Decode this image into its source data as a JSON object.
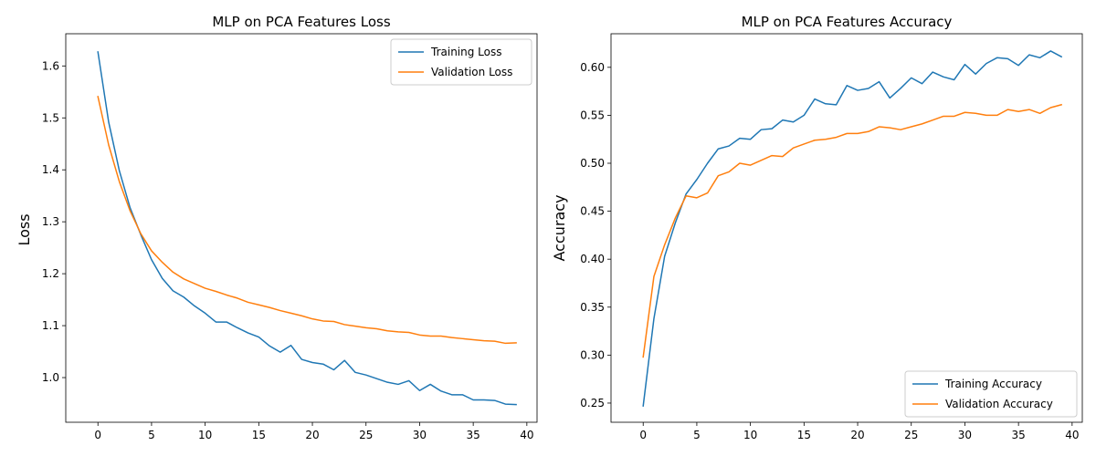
{
  "colors": {
    "training": "#1f77b4",
    "validation": "#ff7f0e",
    "axes": "#000000",
    "legend_border": "#cccccc"
  },
  "chart_data": [
    {
      "type": "line",
      "title": "MLP on PCA Features Loss",
      "xlabel": "",
      "ylabel": "Loss",
      "xlim": [
        -3.0,
        40.95
      ],
      "ylim": [
        0.914,
        1.662
      ],
      "xticks": [
        0,
        5,
        10,
        15,
        20,
        25,
        30,
        35,
        40
      ],
      "yticks": [
        1.0,
        1.1,
        1.2,
        1.3,
        1.4,
        1.5,
        1.6
      ],
      "ytick_labels": [
        "1.0",
        "1.1",
        "1.2",
        "1.3",
        "1.4",
        "1.5",
        "1.6"
      ],
      "grid": false,
      "legend_position": "upper right",
      "series": [
        {
          "name": "Training Loss",
          "color": "#1f77b4",
          "x": [
            0,
            1,
            2,
            3,
            4,
            5,
            6,
            7,
            8,
            9,
            10,
            11,
            12,
            13,
            14,
            15,
            16,
            17,
            18,
            19,
            20,
            21,
            22,
            23,
            24,
            25,
            26,
            27,
            28,
            29,
            30,
            31,
            32,
            33,
            34,
            35,
            36,
            37,
            38,
            39
          ],
          "y": [
            1.627,
            1.492,
            1.398,
            1.327,
            1.275,
            1.227,
            1.191,
            1.167,
            1.155,
            1.138,
            1.124,
            1.107,
            1.107,
            1.096,
            1.086,
            1.078,
            1.061,
            1.049,
            1.062,
            1.035,
            1.029,
            1.026,
            1.015,
            1.033,
            1.01,
            1.005,
            0.998,
            0.991,
            0.987,
            0.994,
            0.975,
            0.987,
            0.974,
            0.967,
            0.967,
            0.957,
            0.957,
            0.956,
            0.949,
            0.948
          ]
        },
        {
          "name": "Validation Loss",
          "color": "#ff7f0e",
          "x": [
            0,
            1,
            2,
            3,
            4,
            5,
            6,
            7,
            8,
            9,
            10,
            11,
            12,
            13,
            14,
            15,
            16,
            17,
            18,
            19,
            20,
            21,
            22,
            23,
            24,
            25,
            26,
            27,
            28,
            29,
            30,
            31,
            32,
            33,
            34,
            35,
            36,
            37,
            38,
            39
          ],
          "y": [
            1.541,
            1.448,
            1.377,
            1.321,
            1.277,
            1.244,
            1.222,
            1.203,
            1.19,
            1.181,
            1.172,
            1.166,
            1.159,
            1.153,
            1.145,
            1.14,
            1.135,
            1.129,
            1.124,
            1.119,
            1.113,
            1.109,
            1.108,
            1.102,
            1.099,
            1.096,
            1.094,
            1.09,
            1.088,
            1.087,
            1.082,
            1.08,
            1.08,
            1.077,
            1.075,
            1.073,
            1.071,
            1.07,
            1.066,
            1.067
          ]
        }
      ]
    },
    {
      "type": "line",
      "title": "MLP on PCA Features Accuracy",
      "xlabel": "",
      "ylabel": "Accuracy",
      "xlim": [
        -3.0,
        40.95
      ],
      "ylim": [
        0.23,
        0.635
      ],
      "xticks": [
        0,
        5,
        10,
        15,
        20,
        25,
        30,
        35,
        40
      ],
      "yticks": [
        0.25,
        0.3,
        0.35,
        0.4,
        0.45,
        0.5,
        0.55,
        0.6
      ],
      "ytick_labels": [
        "0.25",
        "0.30",
        "0.35",
        "0.40",
        "0.45",
        "0.50",
        "0.55",
        "0.60"
      ],
      "grid": false,
      "legend_position": "lower right",
      "series": [
        {
          "name": "Training Accuracy",
          "color": "#1f77b4",
          "x": [
            0,
            1,
            2,
            3,
            4,
            5,
            6,
            7,
            8,
            9,
            10,
            11,
            12,
            13,
            14,
            15,
            16,
            17,
            18,
            19,
            20,
            21,
            22,
            23,
            24,
            25,
            26,
            27,
            28,
            29,
            30,
            31,
            32,
            33,
            34,
            35,
            36,
            37,
            38,
            39
          ],
          "y": [
            0.247,
            0.338,
            0.403,
            0.438,
            0.468,
            0.483,
            0.5,
            0.515,
            0.518,
            0.526,
            0.525,
            0.535,
            0.536,
            0.545,
            0.543,
            0.55,
            0.567,
            0.562,
            0.561,
            0.581,
            0.576,
            0.578,
            0.585,
            0.568,
            0.578,
            0.589,
            0.583,
            0.595,
            0.59,
            0.587,
            0.603,
            0.593,
            0.604,
            0.61,
            0.609,
            0.602,
            0.613,
            0.61,
            0.617,
            0.611
          ]
        },
        {
          "name": "Validation Accuracy",
          "color": "#ff7f0e",
          "x": [
            0,
            1,
            2,
            3,
            4,
            5,
            6,
            7,
            8,
            9,
            10,
            11,
            12,
            13,
            14,
            15,
            16,
            17,
            18,
            19,
            20,
            21,
            22,
            23,
            24,
            25,
            26,
            27,
            28,
            29,
            30,
            31,
            32,
            33,
            34,
            35,
            36,
            37,
            38,
            39
          ],
          "y": [
            0.298,
            0.382,
            0.415,
            0.443,
            0.466,
            0.464,
            0.469,
            0.487,
            0.491,
            0.5,
            0.498,
            0.503,
            0.508,
            0.507,
            0.516,
            0.52,
            0.524,
            0.525,
            0.527,
            0.531,
            0.531,
            0.533,
            0.538,
            0.537,
            0.535,
            0.538,
            0.541,
            0.545,
            0.549,
            0.549,
            0.553,
            0.552,
            0.55,
            0.55,
            0.556,
            0.554,
            0.556,
            0.552,
            0.558,
            0.561
          ]
        }
      ]
    }
  ]
}
